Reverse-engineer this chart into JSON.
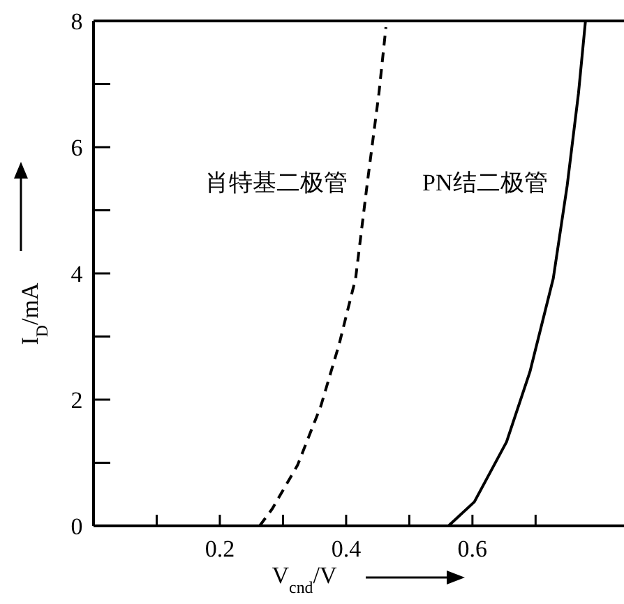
{
  "chart_data": {
    "type": "line",
    "xlabel": "V$_{cnd}$/V",
    "ylabel": "I$_{D}$/mA",
    "xlim": [
      0,
      0.84
    ],
    "ylim": [
      0,
      8
    ],
    "xticks": [
      {
        "value": 0.1,
        "label": null
      },
      0.2,
      {
        "value": 0.3,
        "label": null
      },
      0.4,
      {
        "value": 0.5,
        "label": null
      },
      0.6,
      {
        "value": 0.7,
        "label": null
      }
    ],
    "yticks": [
      0,
      {
        "value": 1,
        "label": null
      },
      2,
      {
        "value": 3,
        "label": null
      },
      4,
      {
        "value": 5,
        "label": null
      },
      6,
      {
        "value": 7,
        "label": null
      },
      8
    ],
    "grid": false,
    "marker": "none",
    "series": [
      {
        "name": "肖特基二极管",
        "color": "#000000",
        "line_style": "dashed",
        "x": [
          0.263,
          0.283,
          0.323,
          0.36,
          0.389,
          0.415,
          0.433,
          0.452,
          0.463
        ],
        "values": [
          0,
          0.27,
          0.96,
          1.9,
          2.88,
          3.92,
          5.39,
          6.86,
          7.9
        ]
      },
      {
        "name": "PN结二极管",
        "color": "#000000",
        "line_style": "solid",
        "x": [
          0.562,
          0.603,
          0.654,
          0.691,
          0.728,
          0.75,
          0.768,
          0.779
        ],
        "values": [
          0,
          0.38,
          1.33,
          2.44,
          3.92,
          5.39,
          6.86,
          8
        ]
      }
    ]
  }
}
